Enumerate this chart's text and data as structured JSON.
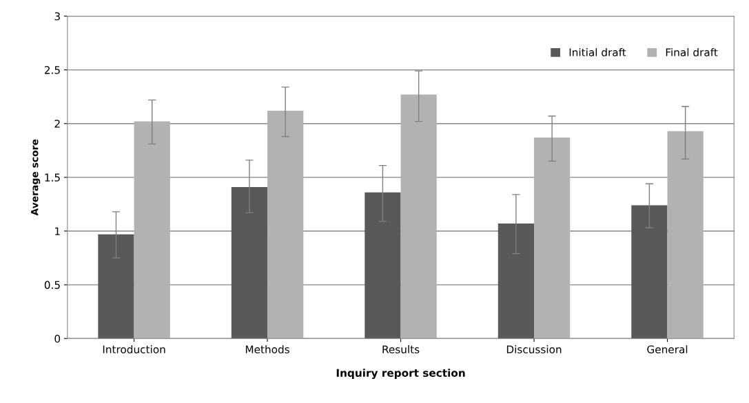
{
  "chart_data": {
    "type": "bar",
    "xlabel": "Inquiry report section",
    "ylabel": "Average score",
    "categories": [
      "Introduction",
      "Methods",
      "Results",
      "Discussion",
      "General"
    ],
    "series": [
      {
        "name": "Initial draft",
        "color": "#595959",
        "values": [
          0.97,
          1.41,
          1.36,
          1.07,
          1.24
        ],
        "errors": [
          [
            0.75,
            1.18
          ],
          [
            1.17,
            1.66
          ],
          [
            1.09,
            1.61
          ],
          [
            0.79,
            1.34
          ],
          [
            1.03,
            1.44
          ]
        ]
      },
      {
        "name": "Final draft",
        "color": "#b2b2b2",
        "values": [
          2.02,
          2.12,
          2.27,
          1.87,
          1.93
        ],
        "errors": [
          [
            1.81,
            2.22
          ],
          [
            1.88,
            2.34
          ],
          [
            2.02,
            2.49
          ],
          [
            1.65,
            2.07
          ],
          [
            1.67,
            2.16
          ]
        ]
      }
    ],
    "ylim": [
      0,
      3
    ],
    "yticks": [
      0,
      0.5,
      1,
      1.5,
      2,
      2.5,
      3
    ],
    "grid": "y",
    "legend": "top right"
  }
}
